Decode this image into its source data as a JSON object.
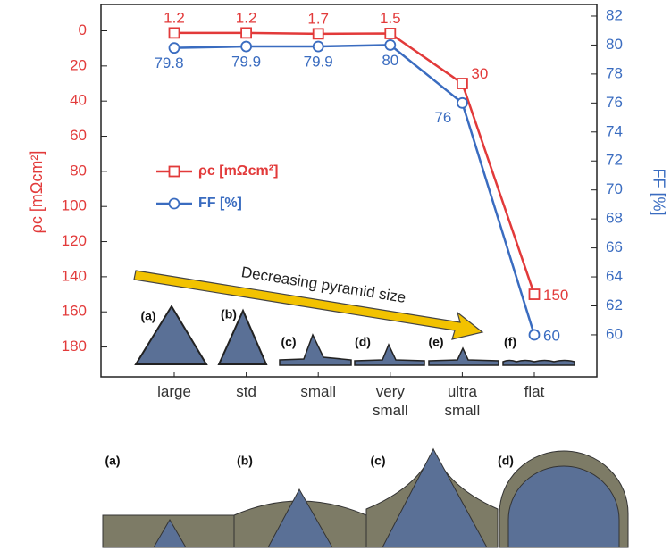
{
  "chart_data": {
    "type": "line",
    "categories": [
      "large",
      "std",
      "small",
      "very small",
      "ultra small",
      "flat"
    ],
    "ylabel": "ρc [mΩcm²]",
    "y2label": "FF [%]",
    "ylim": [
      -15,
      197
    ],
    "y_inverted": true,
    "yticks": [
      0,
      20,
      40,
      60,
      80,
      100,
      120,
      140,
      160,
      180
    ],
    "y2lim": [
      57.1,
      82.8
    ],
    "y2ticks": [
      60,
      62,
      64,
      66,
      68,
      70,
      72,
      74,
      76,
      78,
      80,
      82
    ],
    "series": [
      {
        "name": "ρc [mΩcm²]",
        "color": "#e23a3a",
        "marker": "square",
        "values": [
          1.2,
          1.2,
          1.7,
          1.5,
          30,
          150
        ]
      },
      {
        "name": "FF [%]",
        "color": "#3a6cc0",
        "marker": "circle",
        "axis": "y2",
        "values": [
          79.8,
          79.9,
          79.9,
          80,
          76,
          60
        ]
      }
    ],
    "annotation": "Decreasing pyramid size",
    "inset_labels": [
      "(a)",
      "(b)",
      "(c)",
      "(d)",
      "(e)",
      "(f)"
    ]
  },
  "bottom_panel": {
    "labels": [
      "(a)",
      "(b)",
      "(c)",
      "(d)"
    ]
  }
}
